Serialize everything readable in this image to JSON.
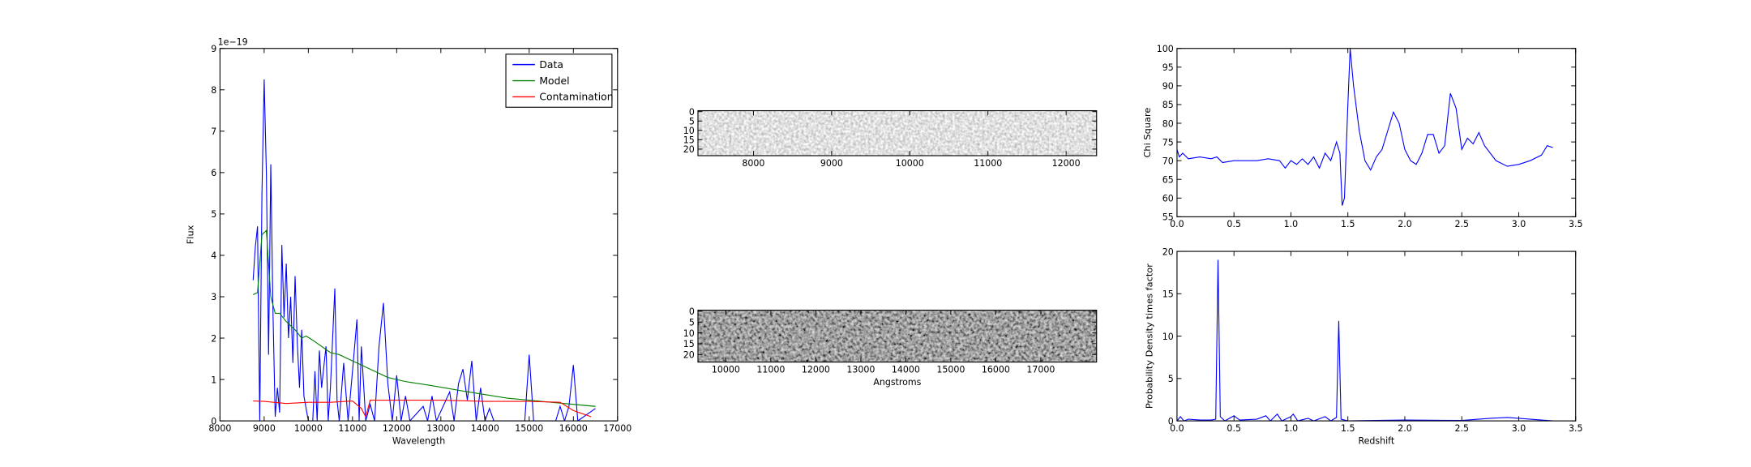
{
  "chart_data": [
    {
      "type": "line",
      "xlabel": "Wavelength",
      "ylabel": "Flux",
      "offset_text": "1e−19",
      "legend": "upper right",
      "xlim": [
        8000,
        17000
      ],
      "xticks": [
        8000,
        9000,
        10000,
        11000,
        12000,
        13000,
        14000,
        15000,
        16000,
        17000
      ],
      "ylim": [
        0,
        9
      ],
      "yticks": [
        0,
        1,
        2,
        3,
        4,
        5,
        6,
        7,
        8,
        9
      ],
      "series": [
        {
          "name": "Data",
          "color": "#0000ff",
          "x": [
            8750,
            8800,
            8850,
            8900,
            8950,
            9000,
            9050,
            9100,
            9150,
            9200,
            9250,
            9300,
            9350,
            9400,
            9450,
            9500,
            9550,
            9600,
            9650,
            9700,
            9750,
            9800,
            9850,
            9900,
            10000,
            10100,
            10150,
            10200,
            10250,
            10300,
            10400,
            10450,
            10500,
            10600,
            10650,
            10700,
            10800,
            10900,
            11000,
            11100,
            11150,
            11200,
            11300,
            11400,
            11500,
            11600,
            11700,
            11800,
            11900,
            12000,
            12100,
            12200,
            12300,
            12600,
            12700,
            12800,
            12900,
            13200,
            13300,
            13400,
            13500,
            13600,
            13700,
            13800,
            13900,
            14000,
            14100,
            14200,
            14900,
            15000,
            15100,
            15600,
            15700,
            15800,
            15900,
            16000,
            16100,
            16500
          ],
          "values": [
            3.4,
            4.2,
            4.7,
            0,
            5.5,
            8.25,
            6.0,
            1.6,
            6.2,
            2.6,
            0.1,
            0.8,
            0.2,
            4.25,
            2.5,
            3.8,
            2.0,
            3.0,
            1.4,
            3.5,
            1.9,
            0.8,
            2.2,
            0.6,
            0,
            0,
            1.2,
            0,
            1.7,
            0.8,
            1.8,
            0,
            0.8,
            3.2,
            0.5,
            0,
            1.4,
            0,
            1.2,
            2.45,
            0,
            1.8,
            0,
            0.4,
            0,
            1.8,
            2.85,
            0.9,
            0,
            1.1,
            0,
            0.6,
            0,
            0.35,
            0,
            0.6,
            0,
            0.7,
            0,
            0.9,
            1.25,
            0.5,
            1.45,
            0,
            0.8,
            0,
            0.3,
            0,
            0,
            1.6,
            0,
            0,
            0.35,
            0,
            0.35,
            1.35,
            0,
            0.3
          ]
        },
        {
          "name": "Model",
          "color": "#008000",
          "x": [
            8750,
            8850,
            8950,
            9050,
            9150,
            9250,
            9350,
            9500,
            9700,
            9850,
            9950,
            10100,
            10300,
            10500,
            10700,
            11000,
            11300,
            11500,
            11800,
            12200,
            12800,
            13500,
            14500,
            15500,
            16500
          ],
          "values": [
            3.05,
            3.1,
            4.5,
            4.6,
            3.0,
            2.6,
            2.6,
            2.4,
            2.2,
            2.0,
            2.05,
            1.95,
            1.8,
            1.65,
            1.6,
            1.45,
            1.3,
            1.2,
            1.05,
            0.95,
            0.85,
            0.72,
            0.55,
            0.45,
            0.35
          ]
        },
        {
          "name": "Contamination",
          "color": "#ff0000",
          "x": [
            8750,
            9000,
            9500,
            10000,
            10500,
            11000,
            11200,
            11300,
            11400,
            12000,
            13000,
            14000,
            15000,
            15700,
            16000,
            16400
          ],
          "values": [
            0.48,
            0.47,
            0.42,
            0.45,
            0.45,
            0.48,
            0.3,
            0.1,
            0.5,
            0.5,
            0.5,
            0.47,
            0.47,
            0.45,
            0.25,
            0.1
          ]
        }
      ]
    },
    {
      "type": "image",
      "xlim": [
        7290,
        12390
      ],
      "xticks": [
        8000,
        9000,
        10000,
        11000,
        12000
      ],
      "ylim": [
        23.5,
        -0.5
      ],
      "yticks": [
        0,
        5,
        10,
        15,
        20
      ]
    },
    {
      "type": "image",
      "xlabel": "Angstroms",
      "xlim": [
        9380,
        18240
      ],
      "xticks": [
        10000,
        11000,
        12000,
        13000,
        14000,
        15000,
        16000,
        17000
      ],
      "ylim": [
        23.5,
        -0.5
      ],
      "yticks": [
        0,
        5,
        10,
        15,
        20
      ]
    },
    {
      "type": "line",
      "ylabel": "Chi Square",
      "xlim": [
        0,
        3.5
      ],
      "xticks": [
        {
          "value": 0,
          "label": "0.0"
        },
        0.5,
        {
          "value": 1,
          "label": "1.0"
        },
        1.5,
        {
          "value": 2,
          "label": "2.0"
        },
        2.5,
        {
          "value": 3,
          "label": "3.0"
        },
        3.5
      ],
      "ylim": [
        55,
        100
      ],
      "yticks": [
        55,
        60,
        65,
        70,
        75,
        80,
        85,
        90,
        95,
        100
      ],
      "series": [
        {
          "color": "#0000ff",
          "x": [
            0,
            0.02,
            0.05,
            0.1,
            0.2,
            0.3,
            0.35,
            0.4,
            0.5,
            0.6,
            0.7,
            0.8,
            0.9,
            0.95,
            1.0,
            1.05,
            1.1,
            1.15,
            1.2,
            1.25,
            1.3,
            1.35,
            1.4,
            1.43,
            1.45,
            1.47,
            1.5,
            1.52,
            1.55,
            1.6,
            1.65,
            1.7,
            1.75,
            1.8,
            1.85,
            1.9,
            1.95,
            2.0,
            2.05,
            2.1,
            2.15,
            2.2,
            2.25,
            2.3,
            2.35,
            2.4,
            2.45,
            2.5,
            2.55,
            2.6,
            2.65,
            2.7,
            2.8,
            2.9,
            3.0,
            3.1,
            3.2,
            3.25,
            3.3
          ],
          "values": [
            73,
            71,
            72,
            70.5,
            71,
            70.5,
            71,
            69.5,
            70,
            70,
            70,
            70.5,
            70,
            68,
            70,
            69,
            70.5,
            69,
            71,
            68,
            72,
            70,
            75,
            72,
            58,
            60,
            85,
            100,
            90,
            78,
            70,
            67.5,
            71,
            73,
            78,
            83,
            80,
            73,
            70,
            69,
            72,
            77,
            77,
            72,
            74,
            88,
            84,
            73,
            76,
            74.5,
            77.5,
            74,
            70,
            68.5,
            69,
            70,
            71.5,
            74,
            73.5
          ]
        }
      ]
    },
    {
      "type": "line",
      "xlabel": "Redshift",
      "ylabel": "Probability Density times factor",
      "xlim": [
        0,
        3.5
      ],
      "xticks": [
        {
          "value": 0,
          "label": "0.0"
        },
        0.5,
        {
          "value": 1,
          "label": "1.0"
        },
        1.5,
        {
          "value": 2,
          "label": "2.0"
        },
        2.5,
        {
          "value": 3,
          "label": "3.0"
        },
        3.5
      ],
      "ylim": [
        0,
        20
      ],
      "yticks": [
        0,
        5,
        10,
        15,
        20
      ],
      "series": [
        {
          "color": "#0000ff",
          "x": [
            0,
            0.03,
            0.06,
            0.1,
            0.2,
            0.3,
            0.34,
            0.36,
            0.38,
            0.42,
            0.5,
            0.55,
            0.7,
            0.78,
            0.82,
            0.88,
            0.92,
            1.0,
            1.02,
            1.06,
            1.15,
            1.2,
            1.3,
            1.35,
            1.4,
            1.42,
            1.44,
            1.5,
            2.0,
            2.5,
            2.75,
            2.9,
            3.0,
            3.2,
            3.3
          ],
          "values": [
            0,
            0.5,
            0,
            0.2,
            0.1,
            0.1,
            0.2,
            19,
            0.5,
            0,
            0.6,
            0.1,
            0.2,
            0.6,
            0,
            0.8,
            0,
            0.5,
            0.8,
            0,
            0.3,
            0,
            0.5,
            0,
            0.4,
            11.8,
            0.2,
            0,
            0.1,
            0.05,
            0.3,
            0.4,
            0.3,
            0.1,
            0
          ]
        }
      ]
    }
  ]
}
